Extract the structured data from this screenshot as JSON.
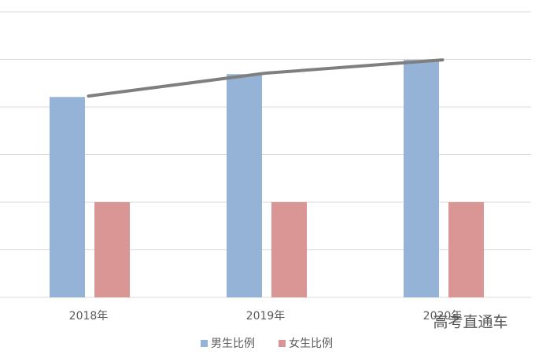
{
  "chart_data": {
    "type": "bar",
    "categories": [
      "2018年",
      "2019年",
      "2020年"
    ],
    "series": [
      {
        "name": "男生比例",
        "color": "#95b3d7",
        "values": [
          4.21,
          4.69,
          4.99
        ]
      },
      {
        "name": "女生比例",
        "color": "#d99694",
        "values": [
          2.0,
          2.0,
          2.0
        ]
      },
      {
        "type": "line",
        "color": "#7f7f7f",
        "values": [
          4.23,
          4.71,
          4.99
        ]
      }
    ],
    "ylim": [
      0,
      6
    ],
    "yticks": [
      0,
      1,
      2,
      3,
      4,
      5,
      6
    ],
    "grid": true,
    "legend": "bottom",
    "watermark": "高考直通车"
  }
}
